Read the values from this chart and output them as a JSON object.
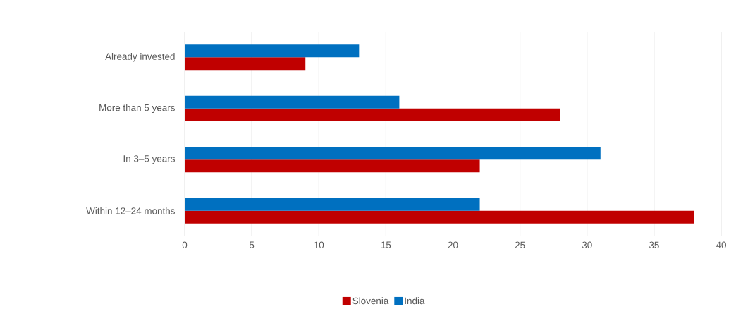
{
  "chart_data": {
    "type": "bar",
    "orientation": "horizontal",
    "categories": [
      "Already invested",
      "More than 5 years",
      "In 3–5 years",
      "Within 12–24 months"
    ],
    "series": [
      {
        "name": "Slovenia",
        "color": "#c00000",
        "values": [
          9,
          28,
          22,
          38
        ]
      },
      {
        "name": "India",
        "color": "#0070c0",
        "values": [
          13,
          16,
          31,
          22
        ]
      }
    ],
    "xlim": [
      0,
      40
    ],
    "xticks": [
      0,
      5,
      10,
      15,
      20,
      25,
      30,
      35,
      40
    ],
    "grid": "x",
    "legend": "bottom"
  }
}
